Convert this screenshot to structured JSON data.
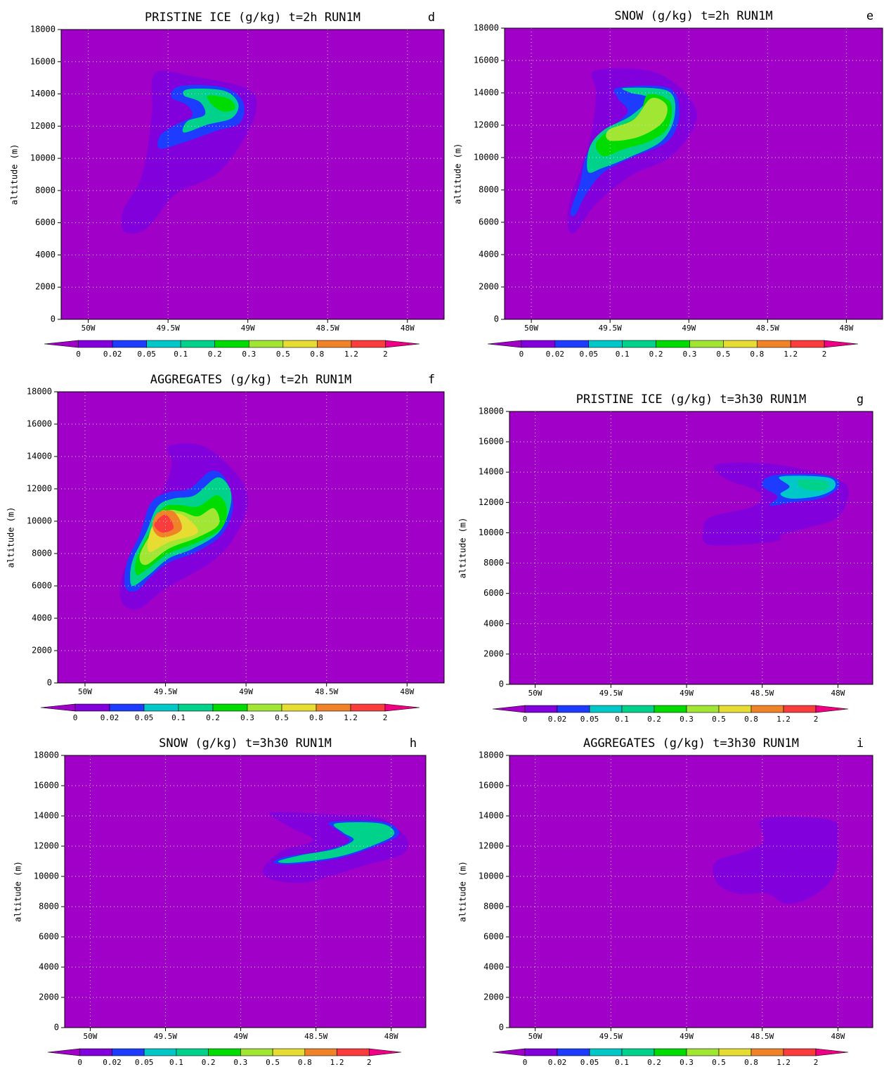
{
  "chart_data": [
    {
      "type": "contour",
      "title": "PRISTINE ICE (g/kg) t=2h RUN1M",
      "label": "d",
      "ylabel": "altitude (m)",
      "xlim": [
        -50.17,
        -47.77
      ],
      "ylim": [
        0,
        18000
      ],
      "xticks": [
        {
          "value": -50,
          "label": "50W"
        },
        {
          "value": -49.5,
          "label": "49.5W"
        },
        {
          "value": -49,
          "label": "49W"
        },
        {
          "value": -48.5,
          "label": "48.5W"
        },
        {
          "value": -48,
          "label": "48W"
        }
      ],
      "yticks": [
        0,
        2000,
        4000,
        6000,
        8000,
        10000,
        12000,
        14000,
        16000,
        18000
      ],
      "grid": true,
      "levels": [
        0,
        0.02,
        0.05,
        0.1,
        0.2,
        0.3,
        0.5,
        0.8,
        1.2,
        2
      ],
      "colors": [
        "#a000c8",
        "#8200dc",
        "#1e3cff",
        "#00c8c8",
        "#00d28c",
        "#00dc00",
        "#a0e632",
        "#e6dc32",
        "#f08228",
        "#fa3c3c",
        "#f00082"
      ],
      "contours": [
        {
          "level": 0,
          "x": [
            -49.58,
            -49.35,
            -49.0,
            -48.95,
            -49.05,
            -49.2,
            -49.45,
            -49.6,
            -49.68,
            -49.78,
            -49.78,
            -49.68,
            -49.63,
            -49.6
          ],
          "y": [
            15300,
            15100,
            14300,
            12900,
            10800,
            9000,
            7800,
            6000,
            5400,
            5500,
            6800,
            8500,
            10500,
            13000
          ]
        },
        {
          "level": 0.02,
          "x": [
            -49.42,
            -49.15,
            -49.03,
            -49.05,
            -49.2,
            -49.4,
            -49.55,
            -49.55,
            -49.45,
            -49.35,
            -49.38,
            -49.48
          ],
          "y": [
            14500,
            14400,
            13500,
            12200,
            11700,
            11000,
            10600,
            11400,
            12100,
            12600,
            13300,
            13800
          ]
        },
        {
          "level": 0.1,
          "x": [
            -49.37,
            -49.15,
            -49.06,
            -49.1,
            -49.25,
            -49.4,
            -49.38,
            -49.27,
            -49.3,
            -49.4
          ],
          "y": [
            14300,
            14200,
            13400,
            12500,
            12100,
            11600,
            12300,
            12700,
            13500,
            13900
          ]
        },
        {
          "level": 0.2,
          "x": [
            -49.25,
            -49.12,
            -49.08,
            -49.15,
            -49.22
          ],
          "y": [
            13900,
            13700,
            13100,
            12900,
            13300
          ]
        }
      ]
    },
    {
      "type": "contour",
      "title": "SNOW (g/kg) t=2h RUN1M",
      "label": "e",
      "ylabel": "altitude (m)",
      "xlim": [
        -50.17,
        -47.77
      ],
      "ylim": [
        0,
        18000
      ],
      "xticks": [
        {
          "value": -50,
          "label": "50W"
        },
        {
          "value": -49.5,
          "label": "49.5W"
        },
        {
          "value": -49,
          "label": "49W"
        },
        {
          "value": -48.5,
          "label": "48.5W"
        },
        {
          "value": -48,
          "label": "48W"
        }
      ],
      "yticks": [
        0,
        2000,
        4000,
        6000,
        8000,
        10000,
        12000,
        14000,
        16000,
        18000
      ],
      "grid": true,
      "levels": [
        0,
        0.02,
        0.05,
        0.1,
        0.2,
        0.3,
        0.5,
        0.8,
        1.2,
        2
      ],
      "colors": [
        "#a000c8",
        "#8200dc",
        "#1e3cff",
        "#00c8c8",
        "#00d28c",
        "#00dc00",
        "#a0e632",
        "#e6dc32",
        "#f08228",
        "#fa3c3c",
        "#f00082"
      ],
      "contours": [
        {
          "level": 0,
          "x": [
            -49.59,
            -49.19,
            -48.95,
            -49.1,
            -49.37,
            -49.59,
            -49.72,
            -49.77,
            -49.75,
            -49.67,
            -49.61,
            -49.59
          ],
          "y": [
            15400,
            15180,
            12790,
            10180,
            8870,
            7130,
            5390,
            5830,
            7570,
            9740,
            11920,
            14090
          ]
        },
        {
          "level": 0.02,
          "x": [
            -49.45,
            -49.13,
            -49.06,
            -49.13,
            -49.37,
            -49.54,
            -49.65,
            -49.72,
            -49.75,
            -49.69,
            -49.65,
            -49.54,
            -49.39,
            -49.45
          ],
          "y": [
            14310,
            14310,
            12790,
            11050,
            9960,
            9090,
            7790,
            6480,
            6700,
            8440,
            10180,
            11480,
            12790,
            13660
          ]
        },
        {
          "level": 0.1,
          "x": [
            -49.41,
            -49.13,
            -49.09,
            -49.17,
            -49.37,
            -49.55,
            -49.64,
            -49.63,
            -49.54,
            -49.37,
            -49.26,
            -49.37
          ],
          "y": [
            14300,
            14100,
            12600,
            11050,
            10050,
            9350,
            9130,
            10620,
            11700,
            12570,
            13660,
            14000
          ]
        },
        {
          "level": 0.2,
          "x": [
            -49.26,
            -49.12,
            -49.13,
            -49.24,
            -49.41,
            -49.54,
            -49.59,
            -49.5,
            -49.32
          ],
          "y": [
            13880,
            13440,
            11920,
            11050,
            10530,
            10090,
            10840,
            11700,
            12570
          ]
        },
        {
          "level": 0.3,
          "x": [
            -49.24,
            -49.14,
            -49.17,
            -49.32,
            -49.5,
            -49.51,
            -49.35
          ],
          "y": [
            13660,
            13220,
            12140,
            11270,
            11050,
            11700,
            12350
          ]
        }
      ]
    },
    {
      "type": "contour",
      "title": "AGGREGATES (g/kg) t=2h RUN1M",
      "label": "f",
      "ylabel": "altitude (m)",
      "xlim": [
        -50.17,
        -47.77
      ],
      "ylim": [
        0,
        18000
      ],
      "xticks": [
        {
          "value": -50,
          "label": "50W"
        },
        {
          "value": -49.5,
          "label": "49.5W"
        },
        {
          "value": -49,
          "label": "49W"
        },
        {
          "value": -48.5,
          "label": "48.5W"
        },
        {
          "value": -48,
          "label": "48W"
        }
      ],
      "yticks": [
        0,
        2000,
        4000,
        6000,
        8000,
        10000,
        12000,
        14000,
        16000,
        18000
      ],
      "grid": true,
      "levels": [
        0,
        0.02,
        0.05,
        0.1,
        0.2,
        0.3,
        0.5,
        0.8,
        1.2,
        2
      ],
      "colors": [
        "#a000c8",
        "#8200dc",
        "#1e3cff",
        "#00c8c8",
        "#00d28c",
        "#00dc00",
        "#a0e632",
        "#e6dc32",
        "#f08228",
        "#fa3c3c",
        "#f00082"
      ],
      "contours": [
        {
          "level": 0,
          "x": [
            -49.48,
            -49.26,
            -49.04,
            -48.99,
            -49.09,
            -49.22,
            -49.37,
            -49.52,
            -49.66,
            -49.76,
            -49.78,
            -49.7,
            -49.52,
            -49.46
          ],
          "y": [
            14620,
            14620,
            12660,
            10920,
            8740,
            7440,
            6570,
            5700,
            4610,
            4830,
            6130,
            8310,
            11790,
            13530
          ]
        },
        {
          "level": 0.02,
          "x": [
            -49.22,
            -49.13,
            -49.08,
            -49.15,
            -49.31,
            -49.48,
            -49.59,
            -49.68,
            -49.75,
            -49.74,
            -49.66,
            -49.59,
            -49.48,
            -49.35
          ],
          "y": [
            13090,
            12660,
            10920,
            9180,
            8090,
            7440,
            6570,
            5700,
            5920,
            7440,
            9180,
            11140,
            11790,
            12010
          ]
        },
        {
          "level": 0.1,
          "x": [
            -49.18,
            -49.1,
            -49.1,
            -49.17,
            -49.33,
            -49.48,
            -49.6,
            -49.7,
            -49.72,
            -49.7,
            -49.62,
            -49.55,
            -49.45,
            -49.32
          ],
          "y": [
            12700,
            12000,
            10800,
            9300,
            8300,
            7700,
            6700,
            6000,
            6600,
            7700,
            9300,
            10900,
            11400,
            11600
          ]
        },
        {
          "level": 0.2,
          "x": [
            -49.18,
            -49.12,
            -49.15,
            -49.3,
            -49.48,
            -49.62,
            -49.68,
            -49.68,
            -49.6,
            -49.52,
            -49.42,
            -49.3
          ],
          "y": [
            11600,
            10800,
            9600,
            8700,
            8000,
            7000,
            6700,
            7700,
            9300,
            10800,
            11000,
            10900
          ]
        },
        {
          "level": 0.3,
          "x": [
            -49.2,
            -49.17,
            -49.3,
            -49.48,
            -49.62,
            -49.66,
            -49.58,
            -49.5,
            -49.4,
            -49.3
          ],
          "y": [
            10800,
            9800,
            9000,
            8300,
            7300,
            7900,
            9400,
            10600,
            10600,
            10300
          ]
        },
        {
          "level": 0.5,
          "x": [
            -49.38,
            -49.3,
            -49.48,
            -49.6,
            -49.6,
            -49.53,
            -49.45
          ],
          "y": [
            10300,
            9300,
            8700,
            8100,
            9200,
            10600,
            10500
          ]
        },
        {
          "level": 0.8,
          "x": [
            -49.45,
            -49.4,
            -49.52,
            -49.58,
            -49.55
          ],
          "y": [
            10600,
            9500,
            9000,
            9600,
            10500
          ]
        },
        {
          "level": 1.2,
          "x": [
            -49.5,
            -49.45,
            -49.52,
            -49.57
          ],
          "y": [
            10400,
            9600,
            9300,
            9800
          ]
        }
      ]
    },
    {
      "type": "contour",
      "title": "PRISTINE ICE (g/kg) t=3h30 RUN1M",
      "label": "g",
      "ylabel": "altitude (m)",
      "xlim": [
        -50.17,
        -47.77
      ],
      "ylim": [
        0,
        18000
      ],
      "xticks": [
        {
          "value": -50,
          "label": "50W"
        },
        {
          "value": -49.5,
          "label": "49.5W"
        },
        {
          "value": -49,
          "label": "49W"
        },
        {
          "value": -48.5,
          "label": "48.5W"
        },
        {
          "value": -48,
          "label": "48W"
        }
      ],
      "yticks": [
        0,
        2000,
        4000,
        6000,
        8000,
        10000,
        12000,
        14000,
        16000,
        18000
      ],
      "grid": true,
      "levels": [
        0,
        0.02,
        0.05,
        0.1,
        0.2,
        0.3,
        0.5,
        0.8,
        1.2,
        2
      ],
      "colors": [
        "#a000c8",
        "#8200dc",
        "#1e3cff",
        "#00c8c8",
        "#00d28c",
        "#00dc00",
        "#a0e632",
        "#e6dc32",
        "#f08228",
        "#fa3c3c",
        "#f00082"
      ],
      "contours": [
        {
          "level": 0,
          "x": [
            -48.8,
            -48.42,
            -48.02,
            -47.93,
            -48.0,
            -48.19,
            -48.37,
            -48.42,
            -48.84,
            -48.89,
            -48.84,
            -48.56,
            -48.52,
            -48.75
          ],
          "y": [
            14520,
            14520,
            13600,
            12670,
            11040,
            10350,
            9880,
            9420,
            9190,
            10120,
            11040,
            11740,
            12670,
            13600
          ]
        },
        {
          "level": 0.02,
          "x": [
            -48.42,
            -48.07,
            -47.99,
            -48.1,
            -48.3,
            -48.45,
            -48.4,
            -48.5
          ],
          "y": [
            13800,
            13780,
            13100,
            12300,
            12000,
            11800,
            12400,
            13100
          ]
        },
        {
          "level": 0.05,
          "x": [
            -48.38,
            -48.07,
            -48.02,
            -48.12,
            -48.3,
            -48.38,
            -48.32
          ],
          "y": [
            13700,
            13650,
            13000,
            12450,
            12250,
            12550,
            13050
          ]
        },
        {
          "level": 0.1,
          "x": [
            -48.25,
            -48.08,
            -48.07,
            -48.15,
            -48.25
          ],
          "y": [
            13500,
            13400,
            12900,
            12750,
            13000
          ]
        }
      ]
    },
    {
      "type": "contour",
      "title": "SNOW (g/kg) t=3h30 RUN1M",
      "label": "h",
      "ylabel": "altitude (m)",
      "xlim": [
        -50.17,
        -47.77
      ],
      "ylim": [
        0,
        18000
      ],
      "xticks": [
        {
          "value": -50,
          "label": "50W"
        },
        {
          "value": -49.5,
          "label": "49.5W"
        },
        {
          "value": -49,
          "label": "49W"
        },
        {
          "value": -48.5,
          "label": "48.5W"
        },
        {
          "value": -48,
          "label": "48W"
        }
      ],
      "yticks": [
        0,
        2000,
        4000,
        6000,
        8000,
        10000,
        12000,
        14000,
        16000,
        18000
      ],
      "grid": true,
      "levels": [
        0,
        0.02,
        0.05,
        0.1,
        0.2,
        0.3,
        0.5,
        0.8,
        1.2,
        2
      ],
      "colors": [
        "#a000c8",
        "#8200dc",
        "#1e3cff",
        "#00c8c8",
        "#00d28c",
        "#00dc00",
        "#a0e632",
        "#e6dc32",
        "#f08228",
        "#fa3c3c",
        "#f00082"
      ],
      "contours": [
        {
          "level": 0,
          "x": [
            -48.8,
            -48.4,
            -48.12,
            -47.98,
            -47.89,
            -47.93,
            -48.17,
            -48.4,
            -48.59,
            -48.8,
            -48.85,
            -48.73,
            -48.52,
            -48.68
          ],
          "y": [
            14230,
            14090,
            14000,
            13300,
            12370,
            11440,
            10740,
            10040,
            9580,
            9810,
            10510,
            11670,
            12370,
            13300
          ]
        },
        {
          "level": 0.02,
          "x": [
            -48.4,
            -48.05,
            -47.95,
            -48.1,
            -48.35,
            -48.65,
            -48.78,
            -48.7,
            -48.45,
            -48.28,
            -48.35
          ],
          "y": [
            13600,
            13600,
            12800,
            12000,
            11200,
            10800,
            10900,
            11300,
            11700,
            12300,
            13000
          ]
        },
        {
          "level": 0.1,
          "x": [
            -48.37,
            -48.07,
            -47.98,
            -48.12,
            -48.35,
            -48.65,
            -48.75,
            -48.6,
            -48.38,
            -48.25,
            -48.32
          ],
          "y": [
            13500,
            13500,
            12800,
            12050,
            11300,
            10900,
            11000,
            11400,
            11800,
            12400,
            12900
          ]
        }
      ]
    },
    {
      "type": "contour",
      "title": "AGGREGATES (g/kg) t=3h30 RUN1M",
      "label": "i",
      "ylabel": "altitude (m)",
      "xlim": [
        -50.17,
        -47.77
      ],
      "ylim": [
        0,
        18000
      ],
      "xticks": [
        {
          "value": -50,
          "label": "50W"
        },
        {
          "value": -49.5,
          "label": "49.5W"
        },
        {
          "value": -49,
          "label": "49W"
        },
        {
          "value": -48.5,
          "label": "48.5W"
        },
        {
          "value": -48,
          "label": "48W"
        }
      ],
      "yticks": [
        0,
        2000,
        4000,
        6000,
        8000,
        10000,
        12000,
        14000,
        16000,
        18000
      ],
      "grid": true,
      "levels": [
        0,
        0.02,
        0.05,
        0.1,
        0.2,
        0.3,
        0.5,
        0.8,
        1.2,
        2
      ],
      "colors": [
        "#a000c8",
        "#8200dc",
        "#1e3cff",
        "#00c8c8",
        "#00d28c",
        "#00dc00",
        "#a0e632",
        "#e6dc32",
        "#f08228",
        "#fa3c3c",
        "#f00082"
      ],
      "contours": [
        {
          "level": 0,
          "x": [
            -48.49,
            -48.05,
            -48.0,
            -48.02,
            -48.14,
            -48.33,
            -48.47,
            -48.66,
            -48.8,
            -48.81,
            -48.61,
            -48.49
          ],
          "y": [
            13830,
            13730,
            12570,
            10250,
            8860,
            8170,
            8860,
            8860,
            9560,
            10950,
            11650,
            12340
          ]
        }
      ]
    }
  ]
}
